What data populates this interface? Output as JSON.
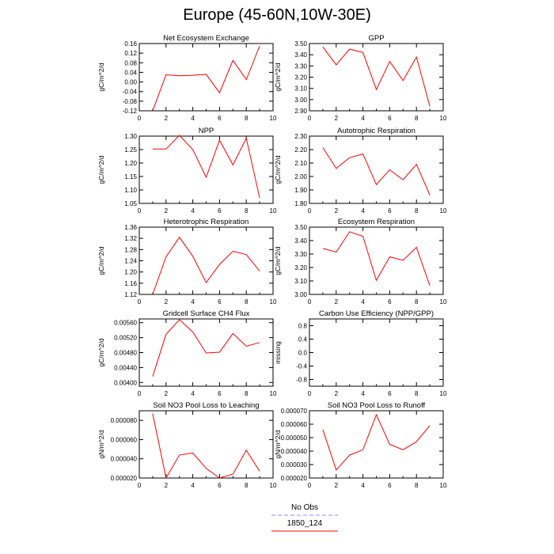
{
  "page": {
    "title": "Europe (45-60N,10W-30E)"
  },
  "legend": {
    "entries": [
      {
        "name": "No Obs",
        "color": "#8c8cff",
        "dash": true
      },
      {
        "name": "1850_124",
        "color": "#ff0000",
        "dash": false
      }
    ]
  },
  "chart_data": [
    {
      "type": "line",
      "title": "Net Ecosystem Exchange",
      "ylabel": "gC/m^2/d",
      "xlim": [
        0,
        10
      ],
      "xticks": [
        0,
        2,
        4,
        6,
        8,
        10
      ],
      "ylim": [
        -0.12,
        0.16
      ],
      "yticks": [
        -0.12,
        -0.08,
        -0.04,
        0.0,
        0.04,
        0.08,
        0.12,
        0.16
      ],
      "yticklabels": [
        "-0.12",
        "-0.08",
        "-0.04",
        "0.00",
        "0.04",
        "0.08",
        "0.12",
        "0.16"
      ],
      "series": [
        {
          "name": "1850_124",
          "color": "#ff0000",
          "x": [
            1,
            2,
            3,
            4,
            5,
            6,
            7,
            8,
            9
          ],
          "values": [
            -0.12,
            0.03,
            0.026,
            0.028,
            0.032,
            -0.045,
            0.09,
            0.01,
            0.15
          ]
        }
      ]
    },
    {
      "type": "line",
      "title": "GPP",
      "ylabel": "gC/m^2/d",
      "xlim": [
        0,
        10
      ],
      "xticks": [
        0,
        2,
        4,
        6,
        8,
        10
      ],
      "ylim": [
        2.9,
        3.5
      ],
      "yticks": [
        2.9,
        3.0,
        3.1,
        3.2,
        3.3,
        3.4,
        3.5
      ],
      "yticklabels": [
        "2.90",
        "3.00",
        "3.10",
        "3.20",
        "3.30",
        "3.40",
        "3.50"
      ],
      "series": [
        {
          "name": "1850_124",
          "color": "#ff0000",
          "x": [
            1,
            2,
            3,
            4,
            5,
            6,
            7,
            8,
            9
          ],
          "values": [
            3.47,
            3.31,
            3.45,
            3.42,
            3.09,
            3.34,
            3.17,
            3.38,
            2.94
          ]
        }
      ]
    },
    {
      "type": "line",
      "title": "NPP",
      "ylabel": "gC/m^2/d",
      "xlim": [
        0,
        10
      ],
      "xticks": [
        0,
        2,
        4,
        6,
        8,
        10
      ],
      "ylim": [
        1.05,
        1.3
      ],
      "yticks": [
        1.05,
        1.1,
        1.15,
        1.2,
        1.25,
        1.3
      ],
      "yticklabels": [
        "1.05",
        "1.10",
        "1.15",
        "1.20",
        "1.25",
        "1.30"
      ],
      "series": [
        {
          "name": "1850_124",
          "color": "#ff0000",
          "x": [
            1,
            2,
            3,
            4,
            5,
            6,
            7,
            8,
            9
          ],
          "values": [
            1.252,
            1.252,
            1.303,
            1.25,
            1.147,
            1.285,
            1.193,
            1.292,
            1.07
          ]
        }
      ]
    },
    {
      "type": "line",
      "title": "Autotrophic Respiration",
      "ylabel": "gC/m^2/d",
      "xlim": [
        0,
        10
      ],
      "xticks": [
        0,
        2,
        4,
        6,
        8,
        10
      ],
      "ylim": [
        1.8,
        2.3
      ],
      "yticks": [
        1.8,
        1.9,
        2.0,
        2.1,
        2.2,
        2.3
      ],
      "yticklabels": [
        "1.80",
        "1.90",
        "2.00",
        "2.10",
        "2.20",
        "2.30"
      ],
      "series": [
        {
          "name": "1850_124",
          "color": "#ff0000",
          "x": [
            1,
            2,
            3,
            4,
            5,
            6,
            7,
            8,
            9
          ],
          "values": [
            2.215,
            2.06,
            2.14,
            2.167,
            1.94,
            2.05,
            1.975,
            2.09,
            1.862
          ]
        }
      ]
    },
    {
      "type": "line",
      "title": "Heterotrophic Respiration",
      "ylabel": "gC/m^2/d",
      "xlim": [
        0,
        10
      ],
      "xticks": [
        0,
        2,
        4,
        6,
        8,
        10
      ],
      "ylim": [
        1.12,
        1.36
      ],
      "yticks": [
        1.12,
        1.16,
        1.2,
        1.24,
        1.28,
        1.32,
        1.36
      ],
      "yticklabels": [
        "1.12",
        "1.16",
        "1.20",
        "1.24",
        "1.28",
        "1.32",
        "1.36"
      ],
      "series": [
        {
          "name": "1850_124",
          "color": "#ff0000",
          "x": [
            1,
            2,
            3,
            4,
            5,
            6,
            7,
            8,
            9
          ],
          "values": [
            1.12,
            1.254,
            1.324,
            1.256,
            1.162,
            1.227,
            1.274,
            1.262,
            1.203
          ]
        }
      ]
    },
    {
      "type": "line",
      "title": "Ecosystem Respiration",
      "ylabel": "gC/m^2/d",
      "xlim": [
        0,
        10
      ],
      "xticks": [
        0,
        2,
        4,
        6,
        8,
        10
      ],
      "ylim": [
        3.0,
        3.5
      ],
      "yticks": [
        3.0,
        3.1,
        3.2,
        3.3,
        3.4,
        3.5
      ],
      "yticklabels": [
        "3.00",
        "3.10",
        "3.20",
        "3.30",
        "3.40",
        "3.50"
      ],
      "series": [
        {
          "name": "1850_124",
          "color": "#ff0000",
          "x": [
            1,
            2,
            3,
            4,
            5,
            6,
            7,
            8,
            9
          ],
          "values": [
            3.342,
            3.314,
            3.466,
            3.432,
            3.104,
            3.279,
            3.254,
            3.35,
            3.065
          ]
        }
      ]
    },
    {
      "type": "line",
      "title": "Gridcell Surface CH4 Flux",
      "ylabel": "gC/m^2/d",
      "xlim": [
        0,
        10
      ],
      "xticks": [
        0,
        2,
        4,
        6,
        8,
        10
      ],
      "ylim": [
        0.0039,
        0.0057
      ],
      "yticks": [
        0.004,
        0.0044,
        0.0048,
        0.0052,
        0.0056
      ],
      "yticklabels": [
        "0.00400",
        "0.00440",
        "0.00480",
        "0.00520",
        "0.00560"
      ],
      "series": [
        {
          "name": "1850_124",
          "color": "#ff0000",
          "x": [
            1,
            2,
            3,
            4,
            5,
            6,
            7,
            8,
            9
          ],
          "values": [
            0.00416,
            0.00529,
            0.00568,
            0.00535,
            0.00479,
            0.00481,
            0.00531,
            0.00497,
            0.00507
          ]
        }
      ]
    },
    {
      "type": "line",
      "title": "Carbon Use Efficiency (NPP/GPP)",
      "ylabel": "missing",
      "xlim": [
        0,
        10
      ],
      "xticks": [
        0,
        2,
        4,
        6,
        8,
        10
      ],
      "ylim": [
        -1.0,
        1.0
      ],
      "yticks": [
        -0.8,
        -0.4,
        0.0,
        0.4,
        0.8
      ],
      "yticklabels": [
        "-0.8",
        "-0.4",
        "0.0",
        "0.4",
        "0.8"
      ],
      "series": []
    },
    {
      "type": "line",
      "title": "Soil NO3 Pool Loss to Leaching",
      "ylabel": "gN/m^2/d",
      "xlim": [
        0,
        10
      ],
      "xticks": [
        0,
        2,
        4,
        6,
        8,
        10
      ],
      "ylim": [
        2e-05,
        9e-05
      ],
      "yticks": [
        2e-05,
        4e-05,
        6e-05,
        8e-05
      ],
      "yticklabels": [
        "0.000020",
        "0.000040",
        "0.000060",
        "0.000080"
      ],
      "series": [
        {
          "name": "1850_124",
          "color": "#ff0000",
          "x": [
            1,
            2,
            3,
            4,
            5,
            6,
            7,
            8,
            9
          ],
          "values": [
            8.7e-05,
            2e-05,
            4.4e-05,
            4.6e-05,
            3e-05,
            2e-05,
            2.4e-05,
            4.9e-05,
            2.7e-05
          ]
        }
      ]
    },
    {
      "type": "line",
      "title": "Soil NO3 Pool Loss to Runoff",
      "ylabel": "gN/m^2/d",
      "xlim": [
        0,
        10
      ],
      "xticks": [
        0,
        2,
        4,
        6,
        8,
        10
      ],
      "ylim": [
        2e-05,
        7e-05
      ],
      "yticks": [
        2e-05,
        3e-05,
        4e-05,
        5e-05,
        6e-05,
        7e-05
      ],
      "yticklabels": [
        "0.000020",
        "0.000030",
        "0.000040",
        "0.000050",
        "0.000060",
        "0.000070"
      ],
      "series": [
        {
          "name": "1850_124",
          "color": "#ff0000",
          "x": [
            1,
            2,
            3,
            4,
            5,
            6,
            7,
            8,
            9
          ],
          "values": [
            5.6e-05,
            2.6e-05,
            3.7e-05,
            4.1e-05,
            6.7e-05,
            4.5e-05,
            4.1e-05,
            4.7e-05,
            5.9e-05
          ]
        }
      ]
    }
  ]
}
